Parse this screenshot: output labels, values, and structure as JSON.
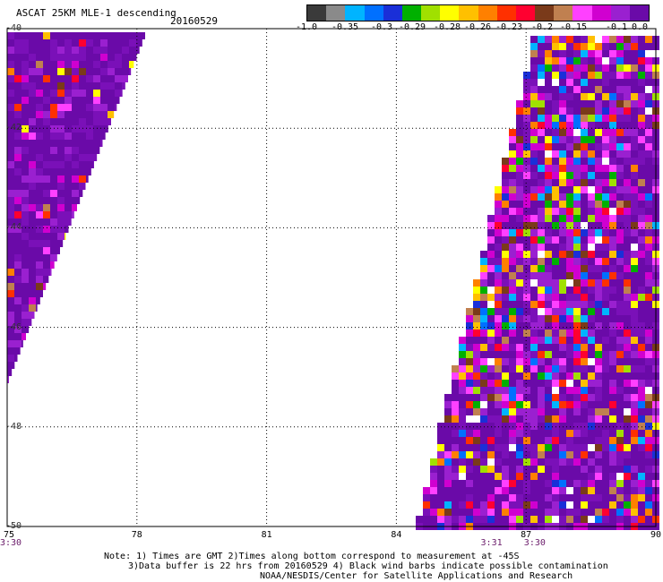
{
  "header": {
    "title": "ASCAT 25KM MLE-1 descending",
    "date": "20160529"
  },
  "colorbar": {
    "colors": [
      "#3a3a3a",
      "#8a8a8a",
      "#00b4ff",
      "#0070ff",
      "#1a2fd8",
      "#00b000",
      "#a0e000",
      "#ffff00",
      "#ffc000",
      "#ff8000",
      "#ff3000",
      "#ff0030",
      "#7a3a1a",
      "#c08050",
      "#ff40ff",
      "#d000d0",
      "#9a20d0",
      "#6a0aa8"
    ],
    "labels": [
      "-1.0",
      "-0.35",
      "-0.3",
      "-0.29",
      "-0.28",
      "-0.26",
      "-0.23",
      "-0.2",
      "-0.15",
      "-0.1",
      "0.0"
    ]
  },
  "axes": {
    "x_ticks": [
      "75",
      "78",
      "81",
      "84",
      "87",
      "90"
    ],
    "y_ticks": [
      "-40",
      "-42",
      "-44",
      "-46",
      "-48",
      "-50"
    ],
    "x_range": [
      75,
      90
    ],
    "y_range": [
      -50,
      -40
    ]
  },
  "times": [
    {
      "label": "3:30",
      "lon": 75
    },
    {
      "label": "3:31",
      "lon": 86.2
    },
    {
      "label": "3:30",
      "lon": 87.2
    }
  ],
  "notes": [
    "Note: 1) Times are GMT 2)Times along bottom correspond to measurement at -45S",
    "3)Data buffer is 22 hrs from 20160529 4) Black wind barbs indicate possible contamination",
    "NOAA/NESDIS/Center for Satellite Applications and Research"
  ],
  "map_data": {
    "description_free": true,
    "palette": [
      "#6a0aa8",
      "#7a10b8",
      "#9a20d0",
      "#d000d0",
      "#ff40ff",
      "#c08050",
      "#7a3a1a",
      "#ff0030",
      "#ff3000",
      "#ff8000",
      "#ffc000",
      "#ffff00",
      "#a0e000",
      "#00b000",
      "#1a2fd8",
      "#0070ff",
      "#00b4ff",
      "#ffffff"
    ]
  }
}
